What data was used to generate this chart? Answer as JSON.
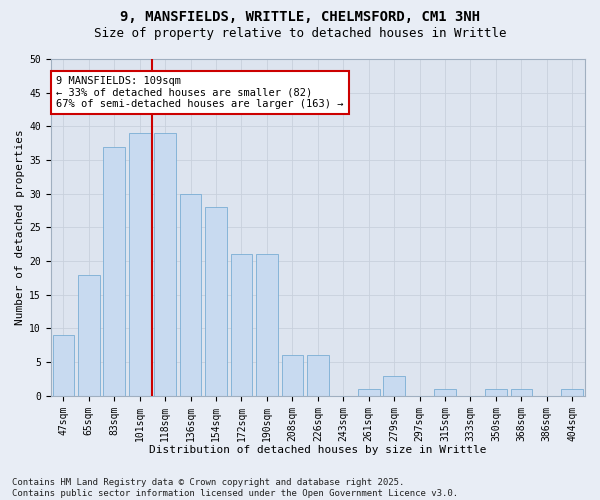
{
  "title1": "9, MANSFIELDS, WRITTLE, CHELMSFORD, CM1 3NH",
  "title2": "Size of property relative to detached houses in Writtle",
  "xlabel": "Distribution of detached houses by size in Writtle",
  "ylabel": "Number of detached properties",
  "categories": [
    "47sqm",
    "65sqm",
    "83sqm",
    "101sqm",
    "118sqm",
    "136sqm",
    "154sqm",
    "172sqm",
    "190sqm",
    "208sqm",
    "226sqm",
    "243sqm",
    "261sqm",
    "279sqm",
    "297sqm",
    "315sqm",
    "333sqm",
    "350sqm",
    "368sqm",
    "386sqm",
    "404sqm"
  ],
  "values": [
    9,
    18,
    37,
    39,
    39,
    30,
    28,
    21,
    21,
    6,
    6,
    0,
    1,
    3,
    0,
    1,
    0,
    1,
    1,
    0,
    1
  ],
  "bar_color": "#c8daf0",
  "bar_edge_color": "#7aadd4",
  "vline_x": 3.5,
  "vline_color": "#cc0000",
  "annotation_text": "9 MANSFIELDS: 109sqm\n← 33% of detached houses are smaller (82)\n67% of semi-detached houses are larger (163) →",
  "annotation_box_color": "#ffffff",
  "annotation_border_color": "#cc0000",
  "ylim": [
    0,
    50
  ],
  "yticks": [
    0,
    5,
    10,
    15,
    20,
    25,
    30,
    35,
    40,
    45,
    50
  ],
  "grid_color": "#c8d0dc",
  "background_color": "#dde4ef",
  "fig_background_color": "#e8edf5",
  "footnote": "Contains HM Land Registry data © Crown copyright and database right 2025.\nContains public sector information licensed under the Open Government Licence v3.0.",
  "title_fontsize": 10,
  "subtitle_fontsize": 9,
  "axis_label_fontsize": 8,
  "tick_fontsize": 7,
  "annotation_fontsize": 7.5,
  "footnote_fontsize": 6.5
}
